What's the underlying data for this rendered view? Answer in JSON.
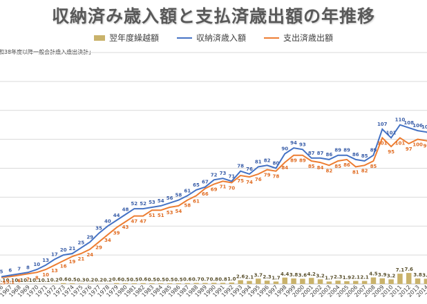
{
  "title": "収納済み歳入額と支払済歳出額の年推移",
  "note": "和38年度以降一般会計歳入歳出決計」",
  "colors": {
    "carryover": "#c9b26b",
    "revenue": "#4472c4",
    "expenditure": "#ed7d31",
    "grid": "#d9d9d9",
    "revenue_label": "#3a5ea8",
    "expenditure_label": "#e06c22",
    "carryover_label": "#59502d"
  },
  "chart_data": {
    "type": "bar",
    "title": "収納済み歳入額と支払済歳出額の年推移",
    "note": "和38年度以降一般会計歳入歳出決計」",
    "legend": [
      "翌年度繰越額",
      "収納済歳入額",
      "支出済歳出額"
    ],
    "legend_position": "top",
    "ylim": [
      0,
      160
    ],
    "grid": true,
    "x": [
      1966,
      1967,
      1968,
      1969,
      1970,
      1971,
      1972,
      1973,
      1974,
      1975,
      1976,
      1977,
      1978,
      1979,
      1980,
      1981,
      1982,
      1983,
      1984,
      1985,
      1986,
      1987,
      1988,
      1989,
      1990,
      1991,
      1992,
      1993,
      1994,
      1995,
      1996,
      1997,
      1998,
      1999,
      2000,
      2001,
      2002,
      2003,
      2004,
      2005,
      2006,
      2007,
      2008,
      2009,
      2010,
      2011,
      2012,
      2013,
      2014,
      2015,
      2016
    ],
    "x_tick_labels": [
      "1966",
      "1967",
      "1968",
      "1969",
      "1970",
      "1971",
      "1972",
      "1973",
      "1974",
      "1975",
      "1976",
      "1977",
      "1978",
      "1979",
      "1980",
      "1981",
      "1982",
      "1983",
      "1984",
      "1985",
      "1986",
      "1987",
      "1988",
      "1989",
      "1990",
      "1991",
      "1992",
      "1993",
      "1994",
      "1995",
      "1996",
      "1997",
      "1998",
      "1999",
      "2000",
      "2001",
      "2002",
      "2003",
      "2004",
      "2005",
      "2006",
      "2007",
      "2008",
      "2009",
      "2010",
      "2011",
      "2012",
      "2013",
      "2014",
      "2015",
      "2016"
    ],
    "series": [
      {
        "name": "翌年度繰越額",
        "type": "bar",
        "values": [
          0.1,
          0.1,
          0.1,
          0.1,
          0.1,
          0.1,
          0.2,
          0.6,
          0.5,
          0.3,
          0.2,
          0.2,
          0.2,
          0.6,
          0.5,
          0.5,
          0.6,
          0.5,
          0.5,
          0.5,
          0.5,
          0.6,
          0.7,
          0.7,
          0.8,
          0.8,
          1.0,
          2.6,
          2.1,
          3.7,
          2.3,
          1.7,
          4.4,
          3.8,
          3.6,
          4.2,
          3.2,
          1.7,
          2.3,
          1.9,
          2.1,
          2.1,
          4.5,
          3.9,
          3.2,
          7.1,
          7.6,
          3.8,
          3.6,
          3.6,
          4.5
        ]
      },
      {
        "name": "収納済歳入額",
        "type": "line",
        "values": [
          5,
          6,
          7,
          8,
          10,
          13,
          17,
          20,
          21,
          25,
          29,
          35,
          40,
          44,
          48,
          52,
          52,
          53,
          54,
          56,
          58,
          61,
          65,
          67,
          72,
          73,
          71,
          78,
          76,
          81,
          82,
          80,
          90,
          94,
          93,
          87,
          87,
          86,
          89,
          89,
          86,
          85,
          89,
          107,
          101,
          110,
          108,
          106,
          105,
          102,
          103
        ]
      },
      {
        "name": "支出済歳出額",
        "type": "line",
        "values": [
          4.5,
          5.1,
          6,
          7,
          8,
          10,
          13,
          16,
          19,
          21,
          24,
          29,
          34,
          39,
          43,
          47,
          47,
          51,
          51,
          53,
          54,
          58,
          61,
          66,
          69,
          71,
          70,
          75,
          74,
          76,
          79,
          78,
          84,
          89,
          89,
          85,
          84,
          82,
          85,
          86,
          81,
          82,
          85,
          101,
          95,
          101,
          97,
          100,
          99,
          96,
          96
        ]
      }
    ]
  }
}
